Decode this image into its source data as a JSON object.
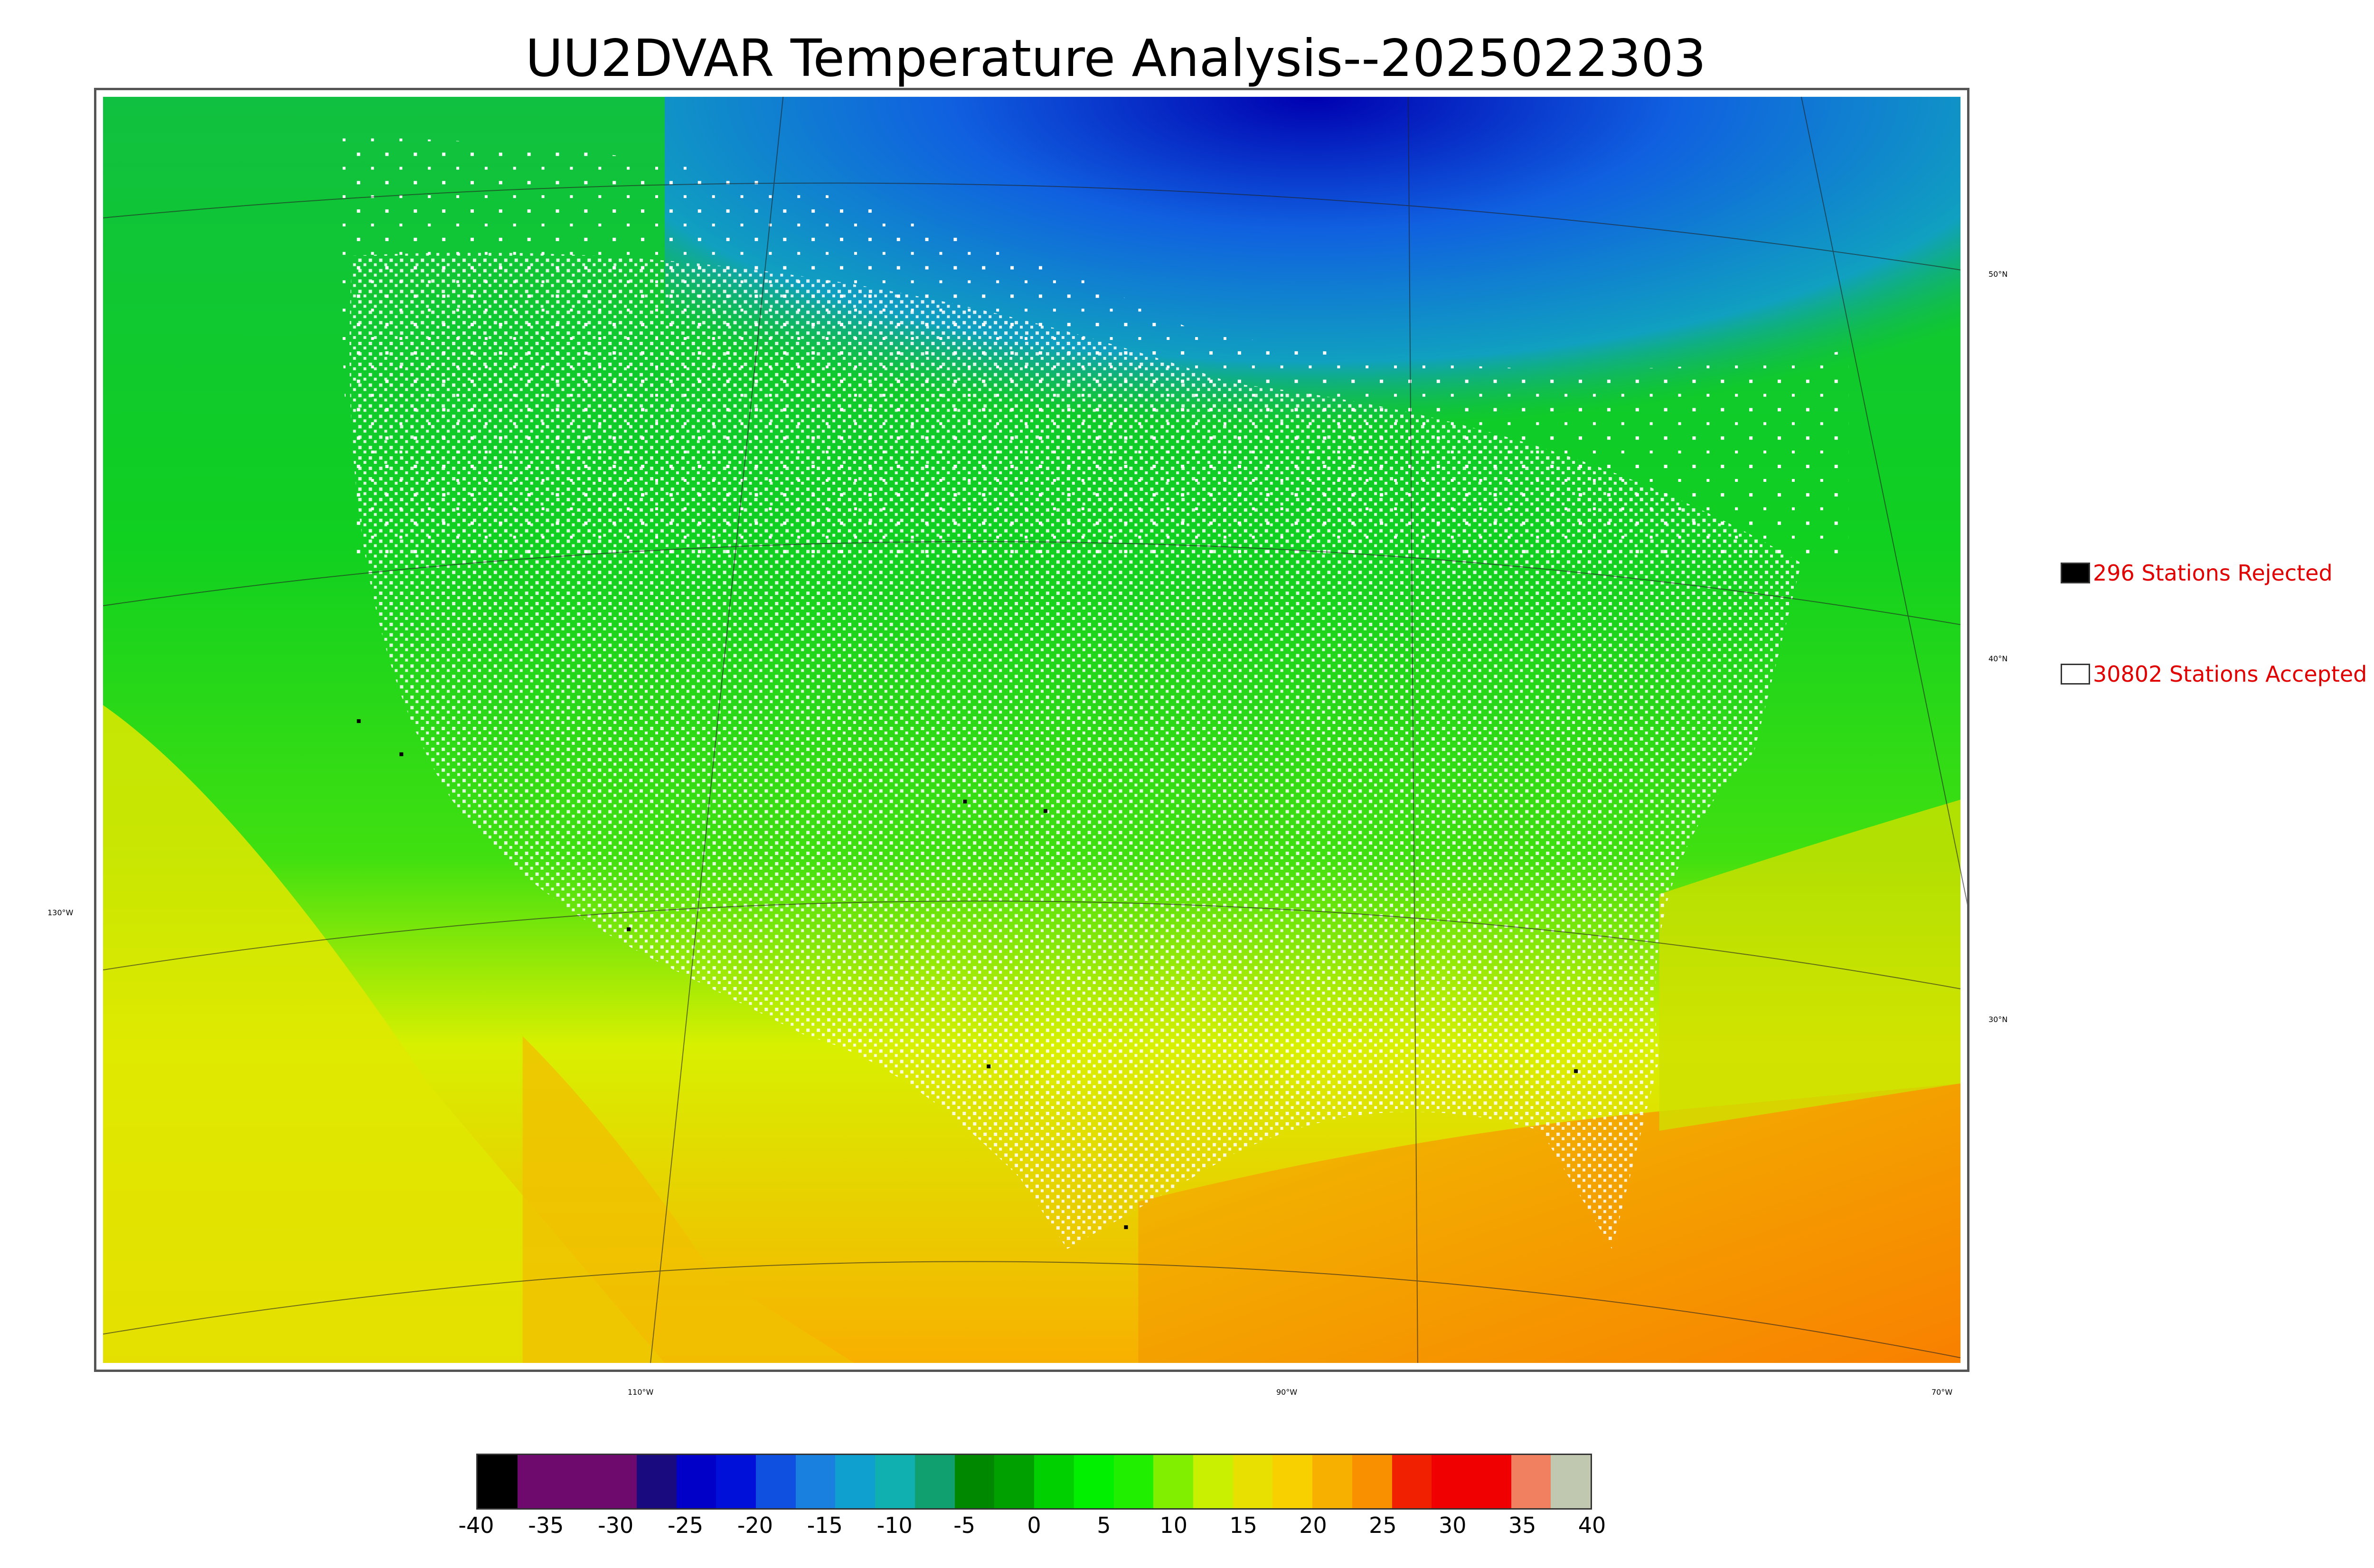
{
  "title": "UU2DVAR Temperature Analysis--2025022303",
  "legend": {
    "rejected_label": "296 Stations Rejected",
    "rejected_color": "#000000",
    "accepted_label": "30802 Stations Accepted",
    "accepted_color": "#ffffff"
  },
  "coordinate_labels": {
    "lon_130": "130°W",
    "lon_110": "110°W",
    "lon_90": "90°W",
    "lon_70": "70°W",
    "lat_50": "50°N",
    "lat_40": "40°N",
    "lat_30": "30°N"
  },
  "colorbar": {
    "min": -40,
    "max": 40,
    "ticks": [
      "-40",
      "-35",
      "-30",
      "-25",
      "-20",
      "-15",
      "-10",
      "-5",
      "0",
      "5",
      "10",
      "15",
      "20",
      "25",
      "30",
      "35",
      "40"
    ],
    "colors": [
      "#000000",
      "#6e0a6e",
      "#6e0a6e",
      "#6e0a6e",
      "#1a0a80",
      "#0000c8",
      "#0010d8",
      "#1050e0",
      "#1a80e0",
      "#10a0d0",
      "#10b0b0",
      "#10a070",
      "#008800",
      "#00a000",
      "#00d000",
      "#00f000",
      "#20f000",
      "#80f000",
      "#c8f000",
      "#e8e000",
      "#f8d000",
      "#f8b000",
      "#f89000",
      "#f02000",
      "#f00000",
      "#f00000",
      "#f08060",
      "#c0c8b0"
    ]
  }
}
